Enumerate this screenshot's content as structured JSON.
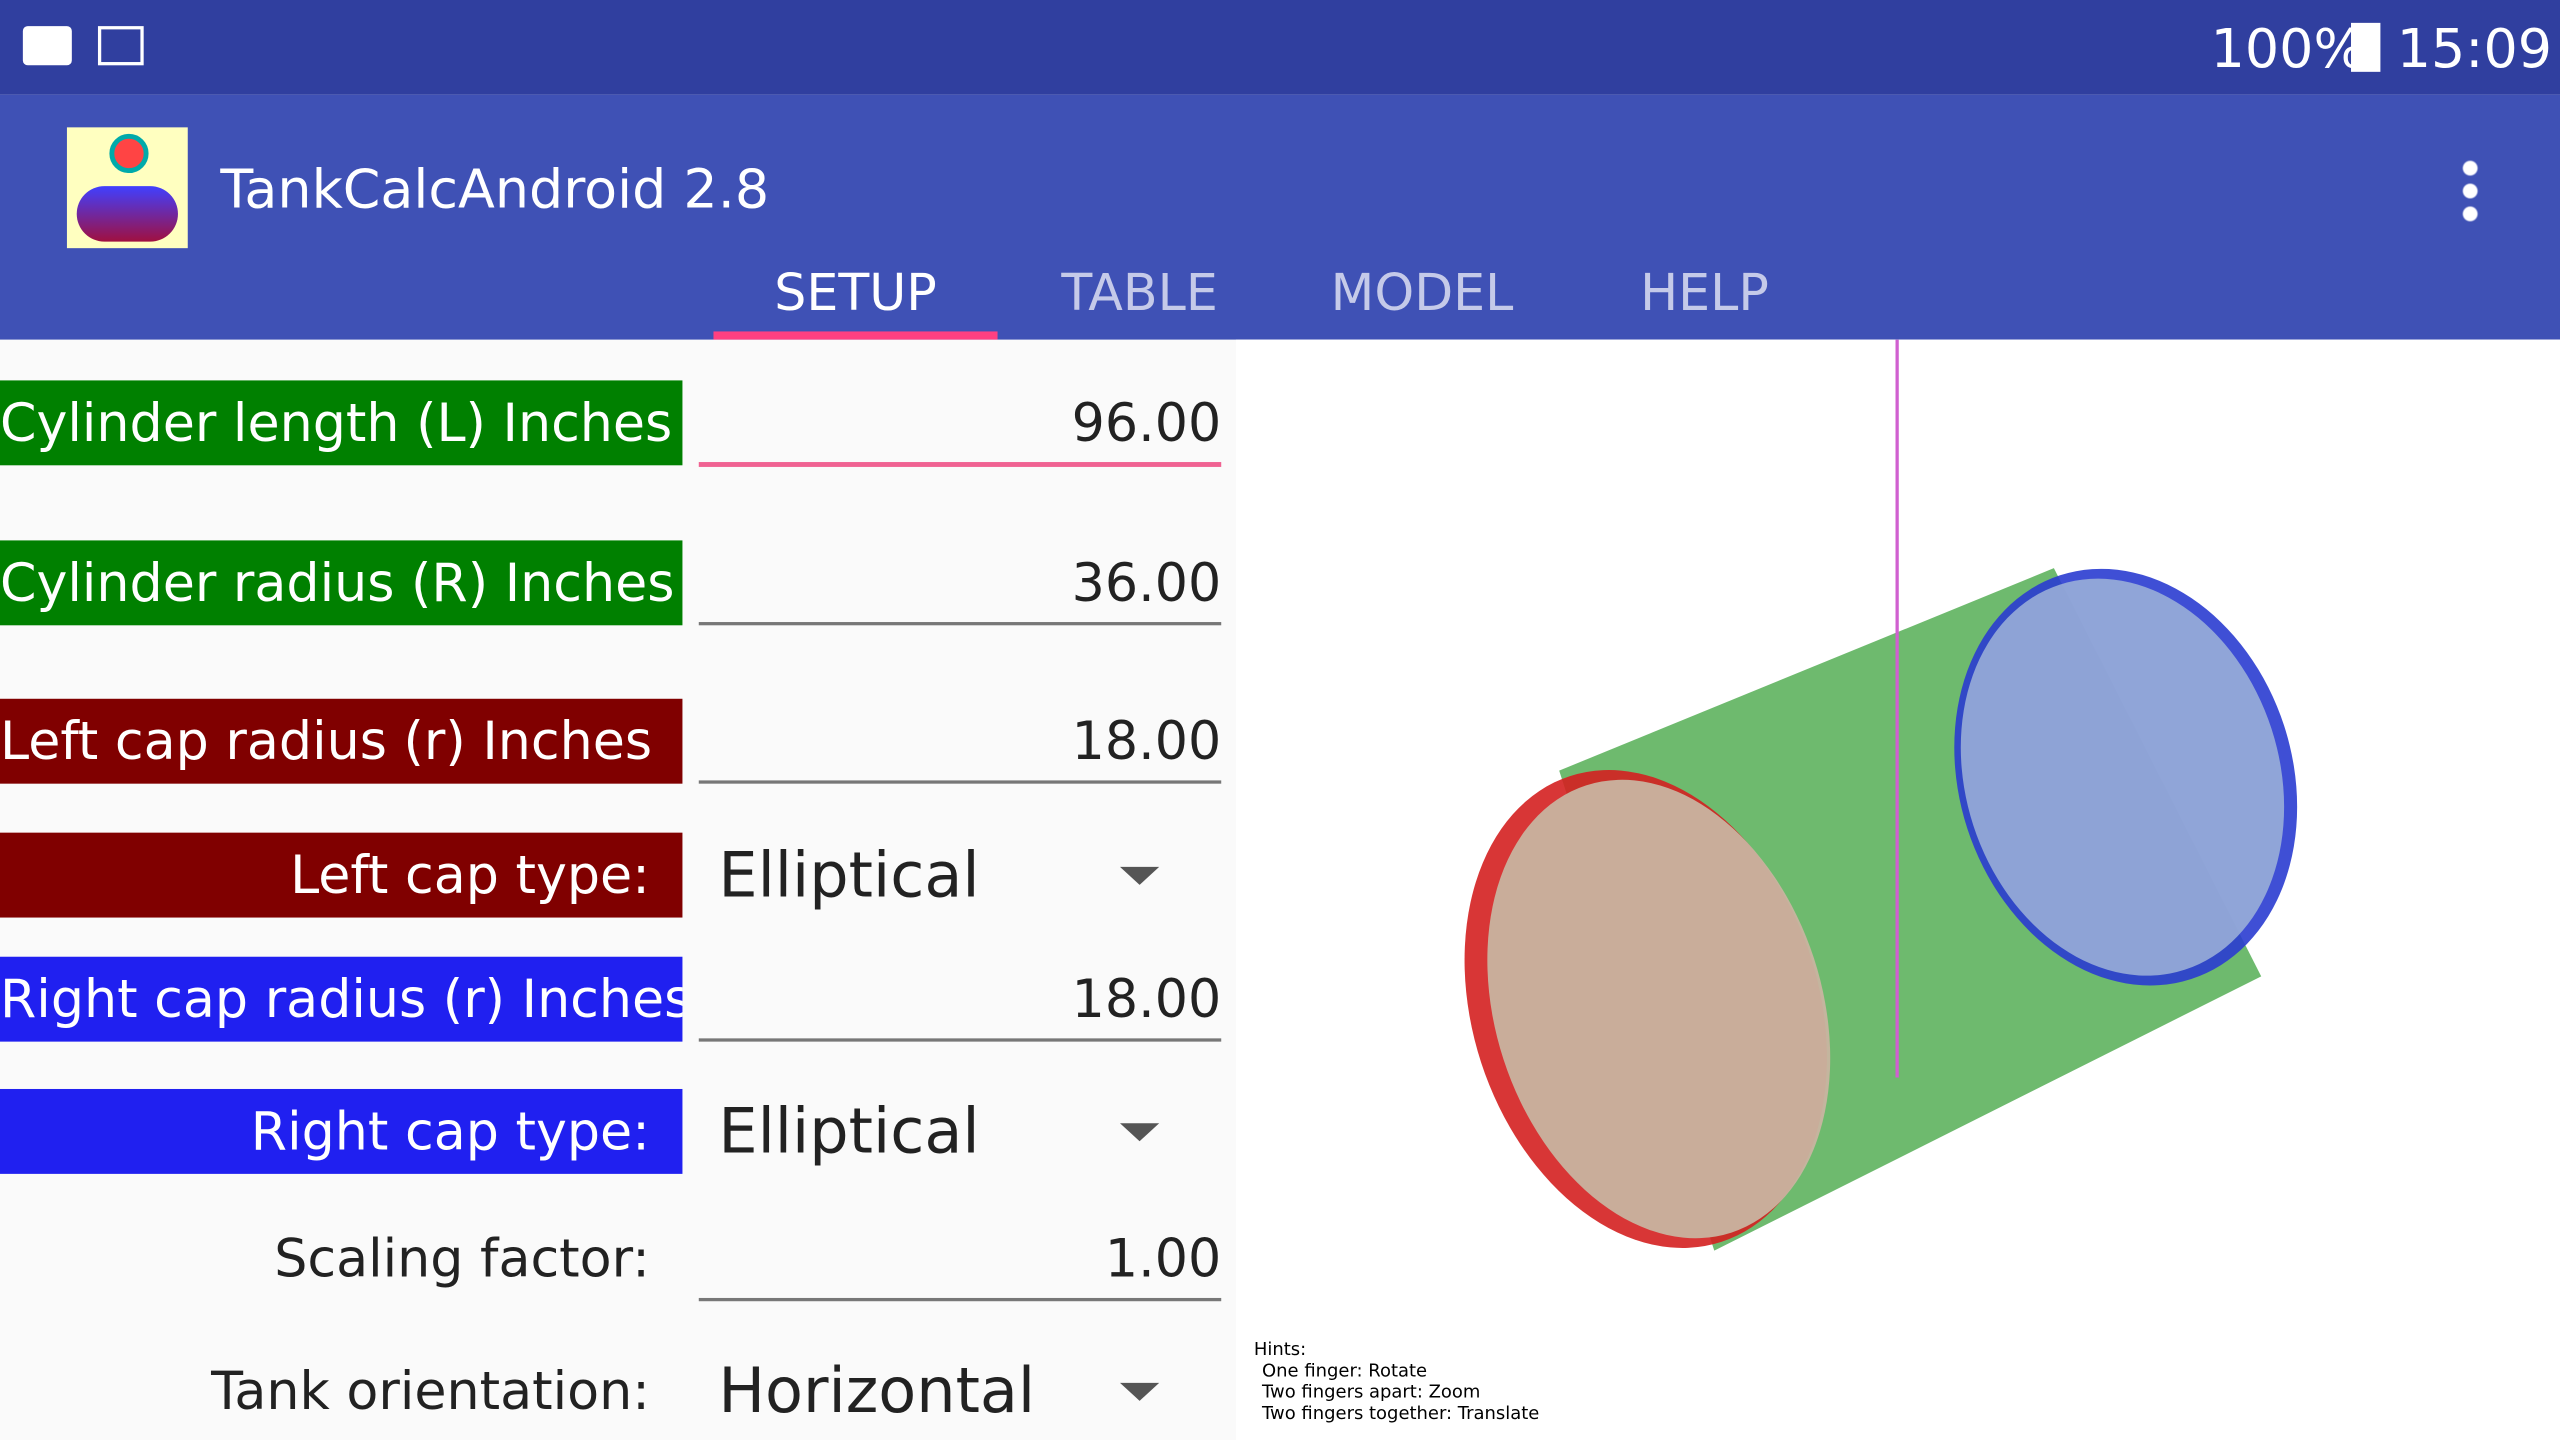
{
  "status_bar": {
    "battery": "100%",
    "time": "15:09"
  },
  "app_bar": {
    "title": "TankCalcAndroid 2.8"
  },
  "tabs": [
    "SETUP",
    "TABLE",
    "MODEL",
    "HELP"
  ],
  "form": {
    "rows": [
      {
        "label": "Cylinder length (L) Inches",
        "value": "96.00"
      },
      {
        "label": "Cylinder radius (R) Inches",
        "value": "36.00"
      },
      {
        "label": "Left cap radius (r) Inches",
        "value": "18.00"
      },
      {
        "label": "Left cap type:",
        "value": "Elliptical"
      },
      {
        "label": "Right cap radius (r) Inches",
        "value": "18.00"
      },
      {
        "label": "Right cap type:",
        "value": "Elliptical"
      },
      {
        "label": "Scaling factor:",
        "value": "1.00"
      },
      {
        "label": "Tank orientation:",
        "value": "Horizontal"
      }
    ]
  },
  "hints": [
    "Hints:",
    "One finger: Rotate",
    "Two fingers apart: Zoom",
    "Two fingers together: Translate"
  ]
}
